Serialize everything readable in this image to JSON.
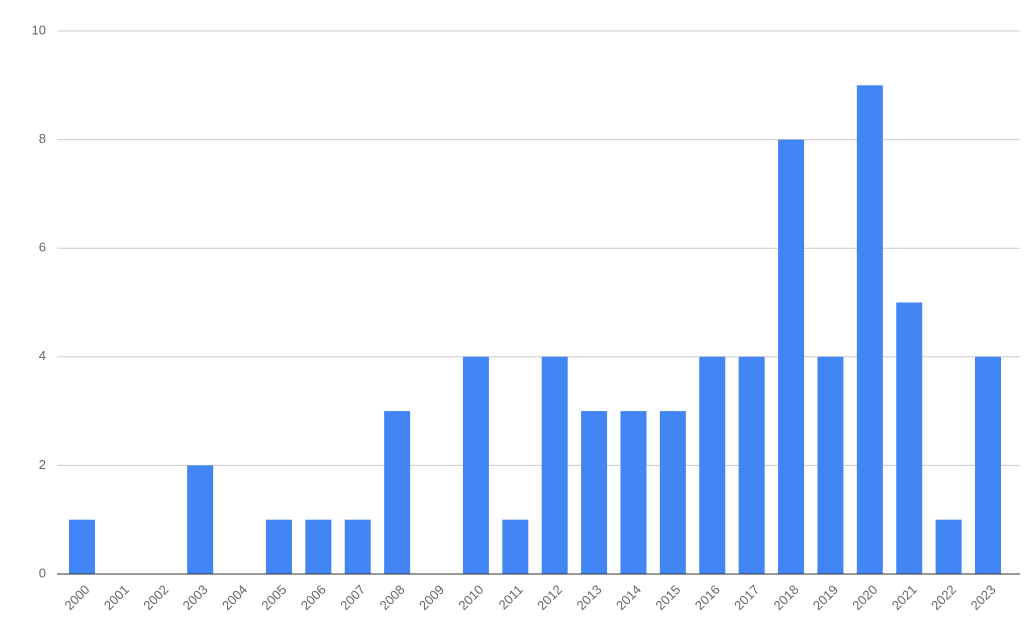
{
  "chart_data": {
    "type": "bar",
    "categories": [
      "2000",
      "2001",
      "2002",
      "2003",
      "2004",
      "2005",
      "2006",
      "2007",
      "2008",
      "2009",
      "2010",
      "2011",
      "2012",
      "2013",
      "2014",
      "2015",
      "2016",
      "2017",
      "2018",
      "2019",
      "2020",
      "2021",
      "2022",
      "2023"
    ],
    "values": [
      1,
      0,
      0,
      2,
      0,
      1,
      1,
      1,
      3,
      0,
      4,
      1,
      4,
      3,
      3,
      3,
      4,
      4,
      8,
      4,
      9,
      5,
      1,
      4
    ],
    "color": "#4285f4",
    "ylim": [
      0,
      10
    ],
    "yticks": [
      0,
      2,
      4,
      6,
      8,
      10
    ],
    "grid": true
  }
}
